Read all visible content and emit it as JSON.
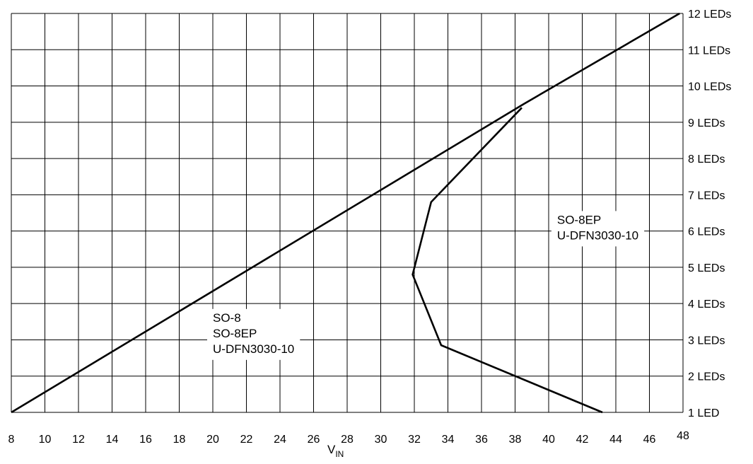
{
  "chart_data": {
    "type": "line",
    "title": "",
    "xlabel": "V",
    "xlabel_sub": "IN",
    "ylabel": "",
    "xlim": [
      8,
      48
    ],
    "ylim": [
      1,
      12
    ],
    "x_ticks": [
      8,
      10,
      12,
      14,
      16,
      18,
      20,
      22,
      24,
      26,
      28,
      30,
      32,
      34,
      36,
      38,
      40,
      42,
      44,
      46,
      48
    ],
    "y_ticks": [
      {
        "value": 1,
        "label": "1 LED"
      },
      {
        "value": 2,
        "label": "2 LEDs"
      },
      {
        "value": 3,
        "label": "3 LEDs"
      },
      {
        "value": 4,
        "label": "4 LEDs"
      },
      {
        "value": 5,
        "label": "5 LEDs"
      },
      {
        "value": 6,
        "label": "6 LEDs"
      },
      {
        "value": 7,
        "label": "7 LEDs"
      },
      {
        "value": 8,
        "label": "8 LEDs"
      },
      {
        "value": 9,
        "label": "9 LEDs"
      },
      {
        "value": 10,
        "label": "10 LEDs"
      },
      {
        "value": 11,
        "label": "11 LEDs"
      },
      {
        "value": 12,
        "label": "12 LEDs"
      }
    ],
    "grid": true,
    "legend": "none",
    "series": [
      {
        "points": [
          [
            8.0,
            1.0
          ],
          [
            38.5,
            9.5
          ],
          [
            47.8,
            12.0
          ]
        ]
      },
      {
        "points": [
          [
            38.4,
            9.4
          ],
          [
            33.0,
            6.8
          ],
          [
            31.9,
            4.8
          ],
          [
            33.6,
            2.85
          ],
          [
            43.2,
            1.0
          ]
        ]
      }
    ],
    "annotations": [
      {
        "lines": [
          "SO-8",
          "SO-8EP",
          "U-DFN3030-10"
        ],
        "x": 20.0,
        "y": 3.5,
        "anchor": "start"
      },
      {
        "lines": [
          "SO-8EP",
          "U-DFN3030-10"
        ],
        "x": 40.5,
        "y": 6.2,
        "anchor": "start"
      }
    ]
  }
}
